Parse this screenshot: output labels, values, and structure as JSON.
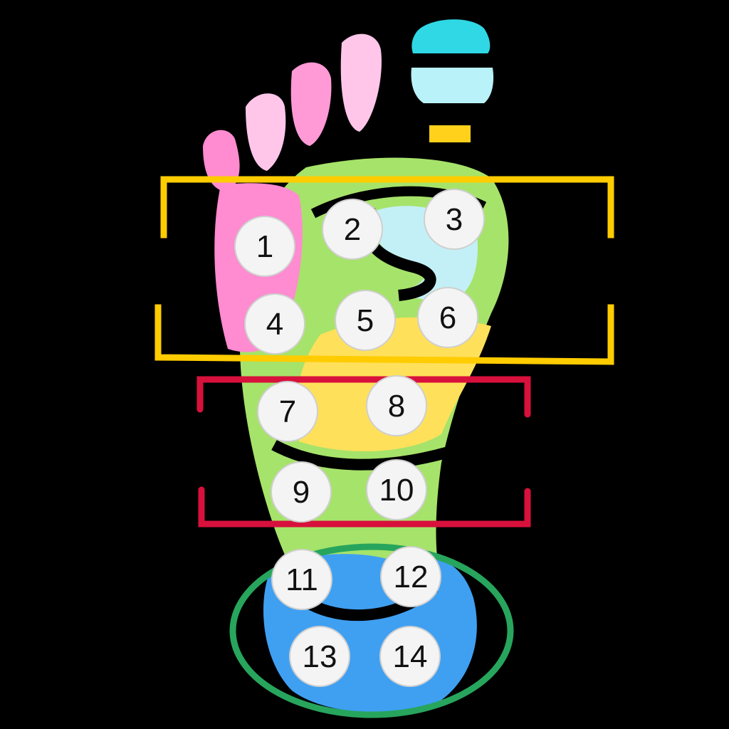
{
  "colors": {
    "background": "#000000",
    "toe": "#ff9ad6",
    "toe_light": "#ffc6ea",
    "heel_cap": "#b9f2f8",
    "heel_cap_dark": "#2fd8e4",
    "band_yellow": "#ffd11a",
    "ball_pink": "#ff8bd0",
    "arch_green": "#a6e36a",
    "arch_blue": "#c3f0f6",
    "mid_yellow": "#ffe05a",
    "heel_blue": "#3fa0f2",
    "frame_yellow": "#ffcc00",
    "frame_red": "#d8103c",
    "frame_green": "#27a55d",
    "marker_fill": "#f4f4f4"
  },
  "points": [
    {
      "label": "1"
    },
    {
      "label": "2"
    },
    {
      "label": "3"
    },
    {
      "label": "4"
    },
    {
      "label": "5"
    },
    {
      "label": "6"
    },
    {
      "label": "7"
    },
    {
      "label": "8"
    },
    {
      "label": "9"
    },
    {
      "label": "10"
    },
    {
      "label": "11"
    },
    {
      "label": "12"
    },
    {
      "label": "13"
    },
    {
      "label": "14"
    }
  ],
  "frames": [
    {
      "name": "frame-yellow",
      "color": "frame_yellow"
    },
    {
      "name": "frame-red",
      "color": "frame_red"
    },
    {
      "name": "frame-green",
      "color": "frame_green"
    }
  ]
}
